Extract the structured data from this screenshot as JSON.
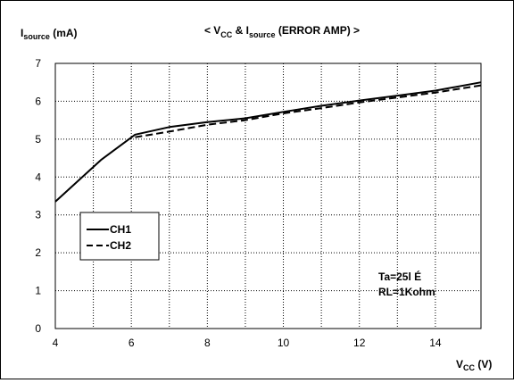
{
  "chart_data": {
    "type": "line",
    "title": {
      "prefix": "< V",
      "sub1": "CC",
      "mid": " & I",
      "sub2": "source",
      "suffix": " (ERROR AMP) >"
    },
    "ylabel": {
      "main": "I",
      "sub": "source",
      "unit": " (mA)"
    },
    "xlabel": {
      "main": "V",
      "sub": "CC",
      "unit": " (V)"
    },
    "xlim": [
      4,
      15.2
    ],
    "ylim": [
      0,
      7
    ],
    "x_ticks": [
      4,
      6,
      8,
      10,
      12,
      14
    ],
    "x_tick_labels": [
      "4",
      "6",
      "8",
      "10",
      "12",
      "14"
    ],
    "y_ticks": [
      0,
      1,
      2,
      3,
      4,
      5,
      6,
      7
    ],
    "y_tick_labels": [
      "0",
      "1",
      "2",
      "3",
      "4",
      "5",
      "6",
      "7"
    ],
    "x_grid": [
      5,
      6,
      7,
      8,
      9,
      10,
      11,
      12,
      13,
      14
    ],
    "y_grid": [
      1,
      2,
      3,
      4,
      5,
      6
    ],
    "grid": true,
    "legend_position": "middle-left",
    "series": [
      {
        "name": "CH1",
        "style": "solid",
        "color": "#000000",
        "x": [
          4.0,
          5.2,
          6.1,
          7.0,
          8.0,
          9.0,
          10.0,
          11.0,
          12.0,
          13.0,
          14.0,
          15.2
        ],
        "y": [
          3.35,
          4.45,
          5.12,
          5.32,
          5.45,
          5.55,
          5.72,
          5.88,
          6.02,
          6.15,
          6.28,
          6.5
        ]
      },
      {
        "name": "CH2",
        "style": "dashed",
        "color": "#000000",
        "x": [
          6.1,
          7.0,
          8.0,
          9.0,
          10.0,
          11.0,
          12.0,
          13.0,
          14.0,
          15.2
        ],
        "y": [
          5.05,
          5.2,
          5.38,
          5.5,
          5.68,
          5.82,
          5.97,
          6.1,
          6.23,
          6.42
        ]
      }
    ],
    "annotations": [
      "Ta=25l É",
      "RL=1Kohm"
    ]
  }
}
